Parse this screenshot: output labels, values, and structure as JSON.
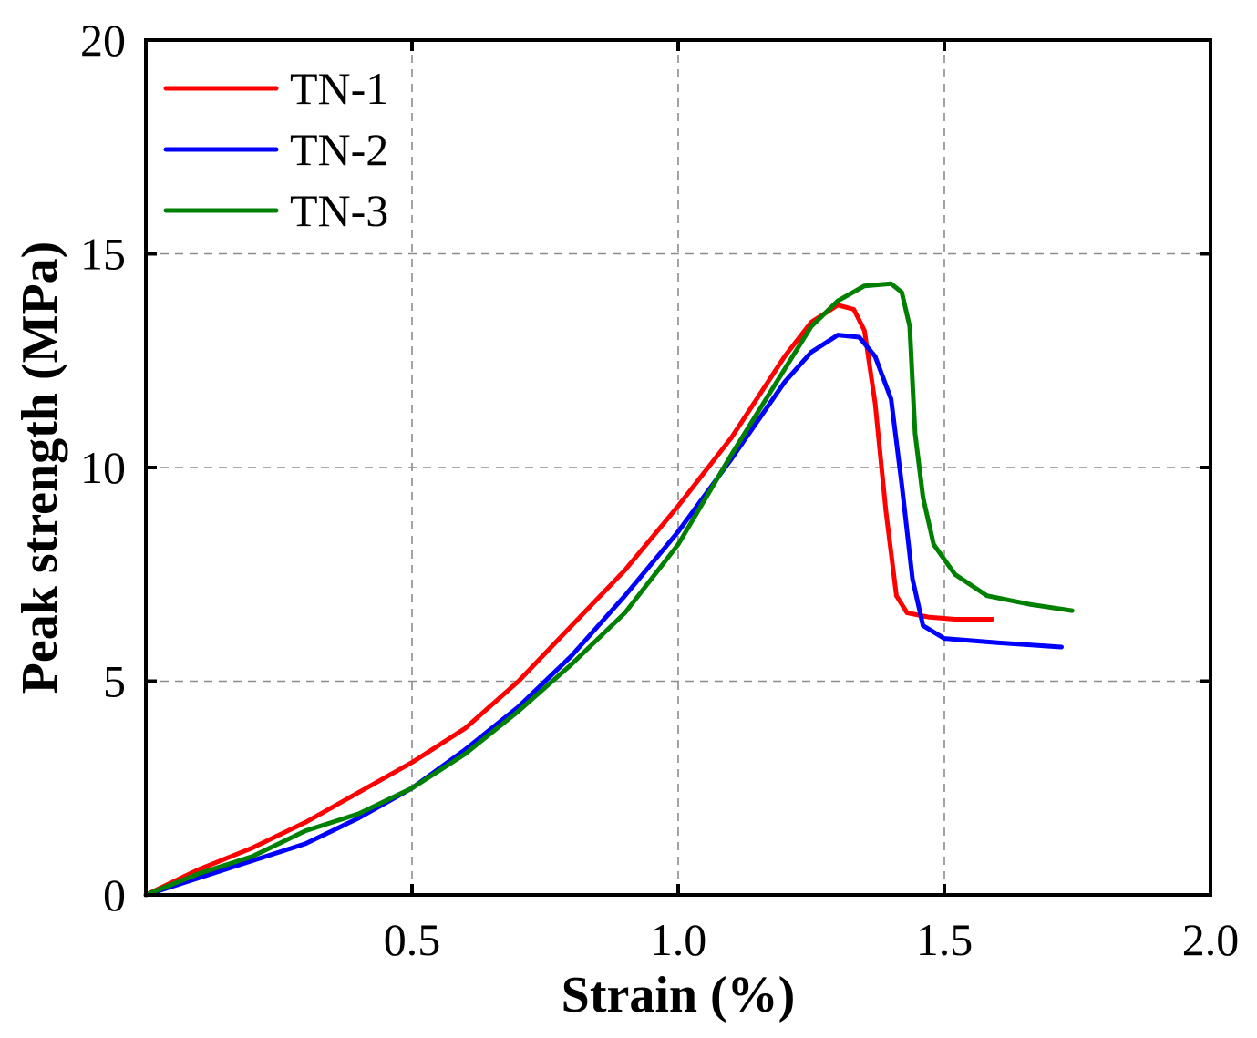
{
  "chart_data": {
    "type": "line",
    "title": "",
    "xlabel": "Strain (%)",
    "ylabel": "Peak strength (MPa)",
    "xlim": [
      0,
      2.0
    ],
    "ylim": [
      0,
      20
    ],
    "x_ticks": [
      0.5,
      1.0,
      1.5,
      2.0
    ],
    "x_tick_labels": [
      "0.5",
      "1.0",
      "1.5",
      "2.0"
    ],
    "y_ticks": [
      0,
      5,
      10,
      15,
      20
    ],
    "y_tick_labels": [
      "0",
      "5",
      "10",
      "15",
      "20"
    ],
    "grid": true,
    "legend_position": "top-left",
    "series": [
      {
        "name": "TN-1",
        "color": "#ff0000",
        "points": [
          [
            0.0,
            0.0
          ],
          [
            0.1,
            0.6
          ],
          [
            0.2,
            1.1
          ],
          [
            0.3,
            1.7
          ],
          [
            0.4,
            2.4
          ],
          [
            0.5,
            3.1
          ],
          [
            0.6,
            3.9
          ],
          [
            0.7,
            5.0
          ],
          [
            0.8,
            6.3
          ],
          [
            0.9,
            7.6
          ],
          [
            1.0,
            9.1
          ],
          [
            1.1,
            10.7
          ],
          [
            1.2,
            12.6
          ],
          [
            1.25,
            13.4
          ],
          [
            1.3,
            13.8
          ],
          [
            1.33,
            13.7
          ],
          [
            1.35,
            13.2
          ],
          [
            1.37,
            11.5
          ],
          [
            1.39,
            9.0
          ],
          [
            1.41,
            7.0
          ],
          [
            1.43,
            6.6
          ],
          [
            1.47,
            6.5
          ],
          [
            1.52,
            6.45
          ],
          [
            1.59,
            6.45
          ]
        ]
      },
      {
        "name": "TN-2",
        "color": "#0000ff",
        "points": [
          [
            0.0,
            0.0
          ],
          [
            0.1,
            0.4
          ],
          [
            0.2,
            0.8
          ],
          [
            0.3,
            1.2
          ],
          [
            0.4,
            1.8
          ],
          [
            0.5,
            2.5
          ],
          [
            0.6,
            3.4
          ],
          [
            0.7,
            4.4
          ],
          [
            0.8,
            5.6
          ],
          [
            0.9,
            7.0
          ],
          [
            1.0,
            8.5
          ],
          [
            1.1,
            10.2
          ],
          [
            1.2,
            12.0
          ],
          [
            1.25,
            12.7
          ],
          [
            1.3,
            13.1
          ],
          [
            1.34,
            13.05
          ],
          [
            1.37,
            12.6
          ],
          [
            1.4,
            11.6
          ],
          [
            1.42,
            9.6
          ],
          [
            1.44,
            7.4
          ],
          [
            1.46,
            6.3
          ],
          [
            1.5,
            6.0
          ],
          [
            1.6,
            5.9
          ],
          [
            1.72,
            5.8
          ]
        ]
      },
      {
        "name": "TN-3",
        "color": "#008000",
        "points": [
          [
            0.0,
            0.0
          ],
          [
            0.1,
            0.5
          ],
          [
            0.2,
            0.9
          ],
          [
            0.3,
            1.5
          ],
          [
            0.4,
            1.9
          ],
          [
            0.5,
            2.5
          ],
          [
            0.6,
            3.3
          ],
          [
            0.7,
            4.3
          ],
          [
            0.8,
            5.4
          ],
          [
            0.9,
            6.6
          ],
          [
            1.0,
            8.2
          ],
          [
            1.1,
            10.3
          ],
          [
            1.2,
            12.3
          ],
          [
            1.25,
            13.3
          ],
          [
            1.3,
            13.9
          ],
          [
            1.35,
            14.25
          ],
          [
            1.4,
            14.3
          ],
          [
            1.42,
            14.1
          ],
          [
            1.435,
            13.3
          ],
          [
            1.445,
            10.8
          ],
          [
            1.46,
            9.3
          ],
          [
            1.48,
            8.2
          ],
          [
            1.52,
            7.5
          ],
          [
            1.58,
            7.0
          ],
          [
            1.66,
            6.8
          ],
          [
            1.74,
            6.65
          ]
        ]
      }
    ]
  }
}
